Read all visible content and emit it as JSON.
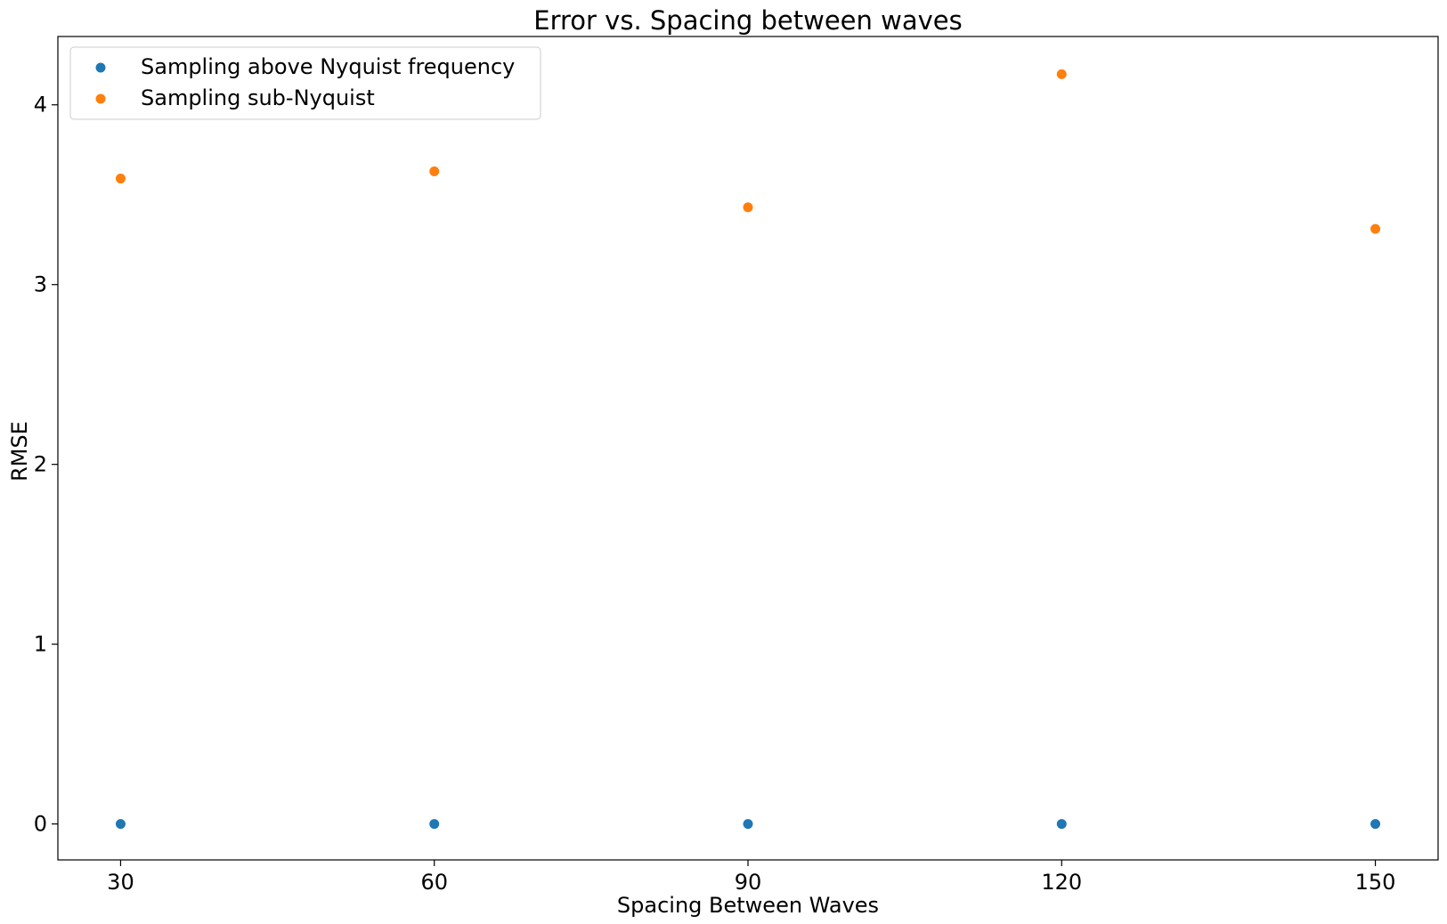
{
  "chart_data": {
    "type": "scatter",
    "title": "Error vs. Spacing between waves",
    "xlabel": "Spacing Between Waves",
    "ylabel": "RMSE",
    "x_ticks": [
      30,
      60,
      90,
      120,
      150
    ],
    "y_ticks": [
      0,
      1,
      2,
      3,
      4
    ],
    "xlim": [
      24,
      156
    ],
    "ylim": [
      -0.2,
      4.38
    ],
    "grid": false,
    "legend_position": "top-left",
    "series": [
      {
        "name": "Sampling above Nyquist frequency",
        "color": "#1f77b4",
        "x": [
          30,
          60,
          90,
          120,
          150
        ],
        "y": [
          0,
          0,
          0,
          0,
          0
        ]
      },
      {
        "name": "Sampling sub-Nyquist",
        "color": "#ff7f0e",
        "x": [
          30,
          60,
          90,
          120,
          150
        ],
        "y": [
          3.59,
          3.63,
          3.43,
          4.17,
          3.31
        ]
      }
    ]
  }
}
